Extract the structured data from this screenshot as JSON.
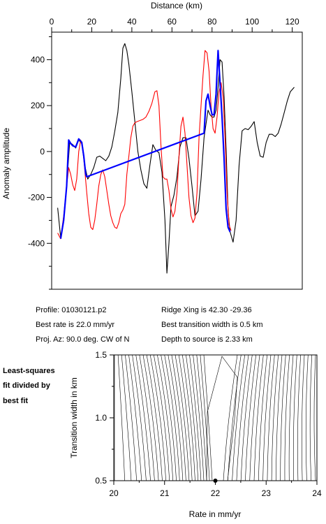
{
  "chart_data": [
    {
      "type": "line",
      "xlabel": "Distance (km)",
      "ylabel": "Anomaly amplitude",
      "xlim": [
        0,
        125
      ],
      "ylim": [
        -600,
        520
      ],
      "xticks": [
        0,
        20,
        40,
        60,
        80,
        100,
        120
      ],
      "yticks": [
        -400,
        -200,
        0,
        200,
        400
      ],
      "x_axis_position": "top",
      "grid": false,
      "series": [
        {
          "color": "#000000",
          "points": [
            [
              3,
              -245
            ],
            [
              4.5,
              -375
            ],
            [
              6,
              -300
            ],
            [
              7.5,
              -150
            ],
            [
              9,
              40
            ],
            [
              10.5,
              30
            ],
            [
              12,
              15
            ],
            [
              13.5,
              50
            ],
            [
              15,
              35
            ],
            [
              16.5,
              -60
            ],
            [
              18,
              -120
            ],
            [
              19.5,
              -100
            ],
            [
              21,
              -70
            ],
            [
              22.5,
              -25
            ],
            [
              24,
              -20
            ],
            [
              25.5,
              -30
            ],
            [
              27,
              -40
            ],
            [
              28.5,
              -20
            ],
            [
              30,
              20
            ],
            [
              31.5,
              90
            ],
            [
              33,
              170
            ],
            [
              34.5,
              320
            ],
            [
              35.5,
              450
            ],
            [
              36.5,
              470
            ],
            [
              37.5,
              440
            ],
            [
              38.5,
              380
            ],
            [
              40,
              260
            ],
            [
              41.5,
              130
            ],
            [
              43,
              0
            ],
            [
              44.5,
              -80
            ],
            [
              46,
              -140
            ],
            [
              47.5,
              -160
            ],
            [
              49,
              -60
            ],
            [
              50.5,
              30
            ],
            [
              52,
              5
            ],
            [
              53.5,
              -5
            ],
            [
              55,
              -90
            ],
            [
              56.5,
              -300
            ],
            [
              57.5,
              -530
            ],
            [
              58.5,
              -400
            ],
            [
              59.5,
              -240
            ],
            [
              61,
              -190
            ],
            [
              62.5,
              -110
            ],
            [
              64,
              20
            ],
            [
              65.5,
              60
            ],
            [
              67,
              60
            ],
            [
              68.5,
              -30
            ],
            [
              70,
              -150
            ],
            [
              71.5,
              -280
            ],
            [
              73,
              -260
            ],
            [
              74.5,
              -120
            ],
            [
              76,
              60
            ],
            [
              77,
              120
            ],
            [
              78,
              180
            ],
            [
              79,
              160
            ],
            [
              80,
              150
            ],
            [
              81,
              150
            ],
            [
              82,
              180
            ],
            [
              83,
              280
            ],
            [
              84,
              400
            ],
            [
              85,
              390
            ],
            [
              86,
              240
            ],
            [
              87,
              10
            ],
            [
              88,
              -260
            ],
            [
              89,
              -350
            ],
            [
              90.5,
              -395
            ],
            [
              92,
              -300
            ],
            [
              93.5,
              -60
            ],
            [
              95,
              90
            ],
            [
              96.5,
              100
            ],
            [
              98,
              95
            ],
            [
              99.5,
              110
            ],
            [
              101,
              130
            ],
            [
              102.5,
              40
            ],
            [
              104,
              -20
            ],
            [
              105.5,
              -25
            ],
            [
              107,
              40
            ],
            [
              108.5,
              75
            ],
            [
              110,
              75
            ],
            [
              111.5,
              65
            ],
            [
              113,
              80
            ],
            [
              114.5,
              120
            ],
            [
              116,
              170
            ],
            [
              117.5,
              220
            ],
            [
              119,
              260
            ],
            [
              121,
              280
            ]
          ]
        },
        {
          "color": "#ff0000",
          "points": [
            [
              3,
              -355
            ],
            [
              4.5,
              -380
            ],
            [
              6,
              -280
            ],
            [
              7.5,
              -150
            ],
            [
              8.5,
              -70
            ],
            [
              9.5,
              -100
            ],
            [
              10.5,
              -145
            ],
            [
              11.5,
              -170
            ],
            [
              12.5,
              -120
            ],
            [
              13.5,
              0
            ],
            [
              14.5,
              50
            ],
            [
              15.5,
              20
            ],
            [
              16.5,
              -80
            ],
            [
              17.5,
              -180
            ],
            [
              18.5,
              -270
            ],
            [
              19.5,
              -330
            ],
            [
              20.5,
              -340
            ],
            [
              21.5,
              -300
            ],
            [
              22.5,
              -230
            ],
            [
              23.5,
              -150
            ],
            [
              24.5,
              -100
            ],
            [
              25.5,
              -80
            ],
            [
              26.5,
              -110
            ],
            [
              27.5,
              -170
            ],
            [
              28.5,
              -230
            ],
            [
              29.5,
              -280
            ],
            [
              30.5,
              -310
            ],
            [
              31.5,
              -330
            ],
            [
              32.5,
              -335
            ],
            [
              33.5,
              -310
            ],
            [
              34.5,
              -270
            ],
            [
              35.5,
              -255
            ],
            [
              36.5,
              -230
            ],
            [
              37.5,
              -100
            ],
            [
              38.5,
              -20
            ],
            [
              39.5,
              60
            ],
            [
              40.5,
              110
            ],
            [
              41.5,
              125
            ],
            [
              42.5,
              130
            ],
            [
              44,
              135
            ],
            [
              45.5,
              140
            ],
            [
              47,
              150
            ],
            [
              48.5,
              175
            ],
            [
              50,
              210
            ],
            [
              51.5,
              260
            ],
            [
              52.5,
              265
            ],
            [
              53.5,
              200
            ],
            [
              54.5,
              30
            ],
            [
              55.5,
              -110
            ],
            [
              56.5,
              -120
            ],
            [
              57.5,
              -120
            ],
            [
              58.5,
              -170
            ],
            [
              59.5,
              -250
            ],
            [
              60.5,
              -285
            ],
            [
              61.5,
              -260
            ],
            [
              62.5,
              -180
            ],
            [
              63.5,
              -20
            ],
            [
              64.5,
              110
            ],
            [
              65.5,
              150
            ],
            [
              66.5,
              80
            ],
            [
              67.5,
              -60
            ],
            [
              68.5,
              -200
            ],
            [
              69.5,
              -280
            ],
            [
              70.5,
              -310
            ],
            [
              71.5,
              -290
            ],
            [
              72.5,
              -180
            ],
            [
              73.5,
              60
            ],
            [
              74.5,
              200
            ],
            [
              75.5,
              330
            ],
            [
              76.5,
              440
            ],
            [
              77.5,
              430
            ],
            [
              78.5,
              350
            ],
            [
              79.5,
              200
            ],
            [
              80.5,
              100
            ],
            [
              81.5,
              80
            ],
            [
              82.5,
              150
            ],
            [
              83.5,
              260
            ],
            [
              84.5,
              300
            ],
            [
              85.5,
              240
            ],
            [
              86.5,
              60
            ],
            [
              87.5,
              -180
            ],
            [
              88.5,
              -320
            ],
            [
              89.5,
              -345
            ]
          ]
        },
        {
          "color": "#0000ff",
          "points": [
            [
              4.5,
              -380
            ],
            [
              6,
              -300
            ],
            [
              7.5,
              -150
            ],
            [
              8.5,
              50
            ],
            [
              9.5,
              35
            ],
            [
              10.5,
              25
            ],
            [
              12,
              20
            ],
            [
              13.5,
              55
            ],
            [
              15,
              40
            ],
            [
              16,
              -20
            ],
            [
              17,
              -100
            ],
            [
              17.5,
              -110
            ],
            [
              76,
              80
            ],
            [
              77,
              220
            ],
            [
              78,
              250
            ],
            [
              79,
              200
            ],
            [
              80,
              160
            ],
            [
              81,
              160
            ],
            [
              82,
              250
            ],
            [
              83,
              440
            ],
            [
              84,
              300
            ],
            [
              85,
              150
            ],
            [
              86,
              -30
            ],
            [
              87,
              -250
            ],
            [
              88,
              -330
            ],
            [
              89,
              -350
            ]
          ]
        }
      ]
    },
    {
      "type": "contour",
      "xlabel": "Rate in mm/yr",
      "ylabel": "Transition width in km",
      "xlim": [
        20,
        24
      ],
      "ylim": [
        0.5,
        1.5
      ],
      "xticks": [
        20,
        21,
        22,
        23,
        24
      ],
      "yticks": [
        0.5,
        1.0,
        1.5
      ],
      "best_fit_point": [
        22.0,
        0.5
      ],
      "color": "#000000"
    }
  ],
  "profile_info": {
    "profile": "Profile: 01030121.p2",
    "ridge_xing": "Ridge Xing is 42.30 -29.36",
    "best_rate": "Best rate is 22.0 mm/yr",
    "transition_width": "Best transition width is 0.5 km",
    "proj_az": "Proj. Az: 90.0 deg. CW of N",
    "depth": "Depth to source is   2.33 km"
  },
  "side_note": [
    "Least-squares",
    "fit divided by",
    "best fit"
  ]
}
